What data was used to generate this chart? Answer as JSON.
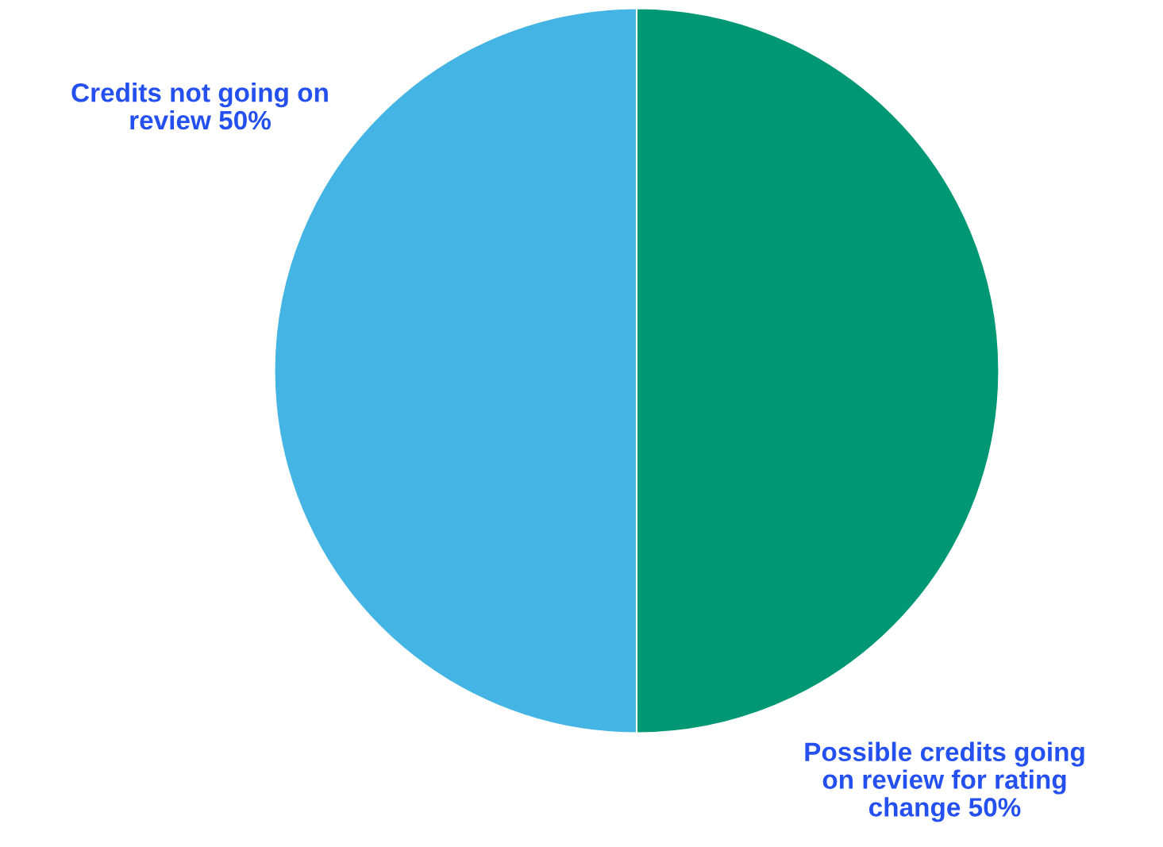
{
  "chart_data": {
    "type": "pie",
    "categories": [
      "Possible credits going\non review for rating\nchange",
      "Credits not going on\nreview"
    ],
    "values": [
      50,
      50
    ],
    "value_labels": [
      "50%",
      "50%"
    ],
    "colors": [
      "#009874",
      "#43b4e4"
    ],
    "legend": false
  }
}
